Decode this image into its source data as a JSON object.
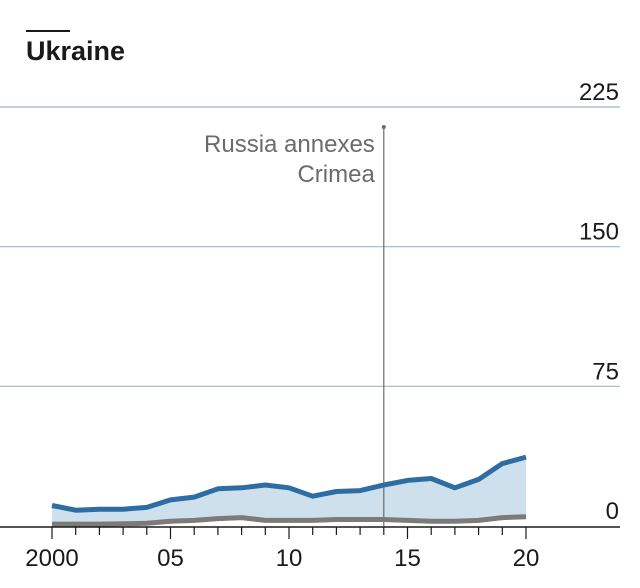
{
  "title": "Ukraine",
  "annotation": {
    "lines": [
      "Russia annexes",
      "Crimea"
    ],
    "x": 2014
  },
  "colors": {
    "upper_line": "#2e6da4",
    "lower_line": "#7d7a78",
    "fill": "#cde0ec",
    "grid": "#9fb7c2",
    "axis": "#1a1a1a",
    "text": "#1a1a1a",
    "annotation": "#6b6b6b"
  },
  "chart_data": {
    "type": "area",
    "title": "Ukraine",
    "xlabel": "",
    "ylabel": "",
    "x": [
      2000,
      2001,
      2002,
      2003,
      2004,
      2005,
      2006,
      2007,
      2008,
      2009,
      2010,
      2011,
      2012,
      2013,
      2014,
      2015,
      2016,
      2017,
      2018,
      2019,
      2020
    ],
    "series": [
      {
        "role": "upper",
        "values": [
          11,
          8.5,
          9,
          9,
          10,
          14,
          15.5,
          20,
          20.5,
          22,
          20.5,
          16,
          18.5,
          19,
          22,
          24.5,
          25.5,
          20.5,
          25,
          33.5,
          37
        ]
      },
      {
        "role": "lower",
        "values": [
          1,
          1,
          1,
          1.2,
          1.5,
          2.5,
          3,
          4,
          4.5,
          3,
          3,
          3,
          3.5,
          3.5,
          3.5,
          3,
          2.5,
          2.5,
          3,
          4.5,
          5
        ]
      }
    ],
    "xlim": [
      2000,
      2020
    ],
    "ylim": [
      0,
      225
    ],
    "y_ticks": [
      "0",
      "75",
      "150",
      "225"
    ],
    "y_tick_values": [
      0,
      75,
      150,
      225
    ],
    "x_ticks": [
      "2000",
      "05",
      "10",
      "15",
      "20"
    ],
    "x_tick_values": [
      2000,
      2005,
      2010,
      2015,
      2020
    ],
    "grid": true,
    "y_axis_side": "right"
  }
}
